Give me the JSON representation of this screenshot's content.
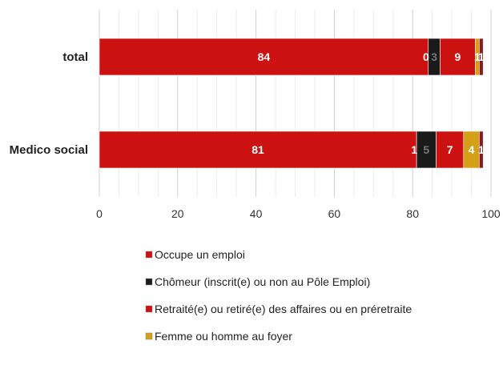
{
  "chart_data": {
    "type": "bar",
    "orientation": "horizontal",
    "stacked": true,
    "categories": [
      "total",
      "Medico social"
    ],
    "xlim": [
      0,
      100
    ],
    "x_ticks": [
      0,
      20,
      40,
      60,
      80,
      100
    ],
    "grid": true,
    "legend_position": "bottom",
    "series": [
      {
        "name": "Occupe un emploi",
        "color": "#cc1111",
        "values": [
          84,
          81
        ],
        "labels": [
          "84",
          "81"
        ]
      },
      {
        "name": "Chômeur (inscrit(e) ou non au Pôle Emploi)",
        "color": "#1a1a1a",
        "values": [
          3,
          5
        ],
        "labels": [
          "3",
          "5"
        ]
      },
      {
        "name": "Retraité(e) ou retiré(e) des affaires ou en préretraite",
        "color": "#cc1111",
        "values": [
          9,
          7
        ],
        "labels": [
          "9",
          "7"
        ]
      },
      {
        "name": "Femme ou homme au foyer",
        "color": "#d4a017",
        "values": [
          1,
          4
        ],
        "labels": [
          "1",
          "4"
        ]
      },
      {
        "name": "",
        "color": "#8b1a1a",
        "values": [
          1,
          1
        ],
        "labels": [
          "1",
          "1"
        ]
      }
    ],
    "extra_labels": [
      {
        "category_index": 0,
        "value": 0,
        "label": "0",
        "after_series": 0
      },
      {
        "category_index": 1,
        "value": 1,
        "label": "1",
        "after_series": 0
      }
    ]
  }
}
